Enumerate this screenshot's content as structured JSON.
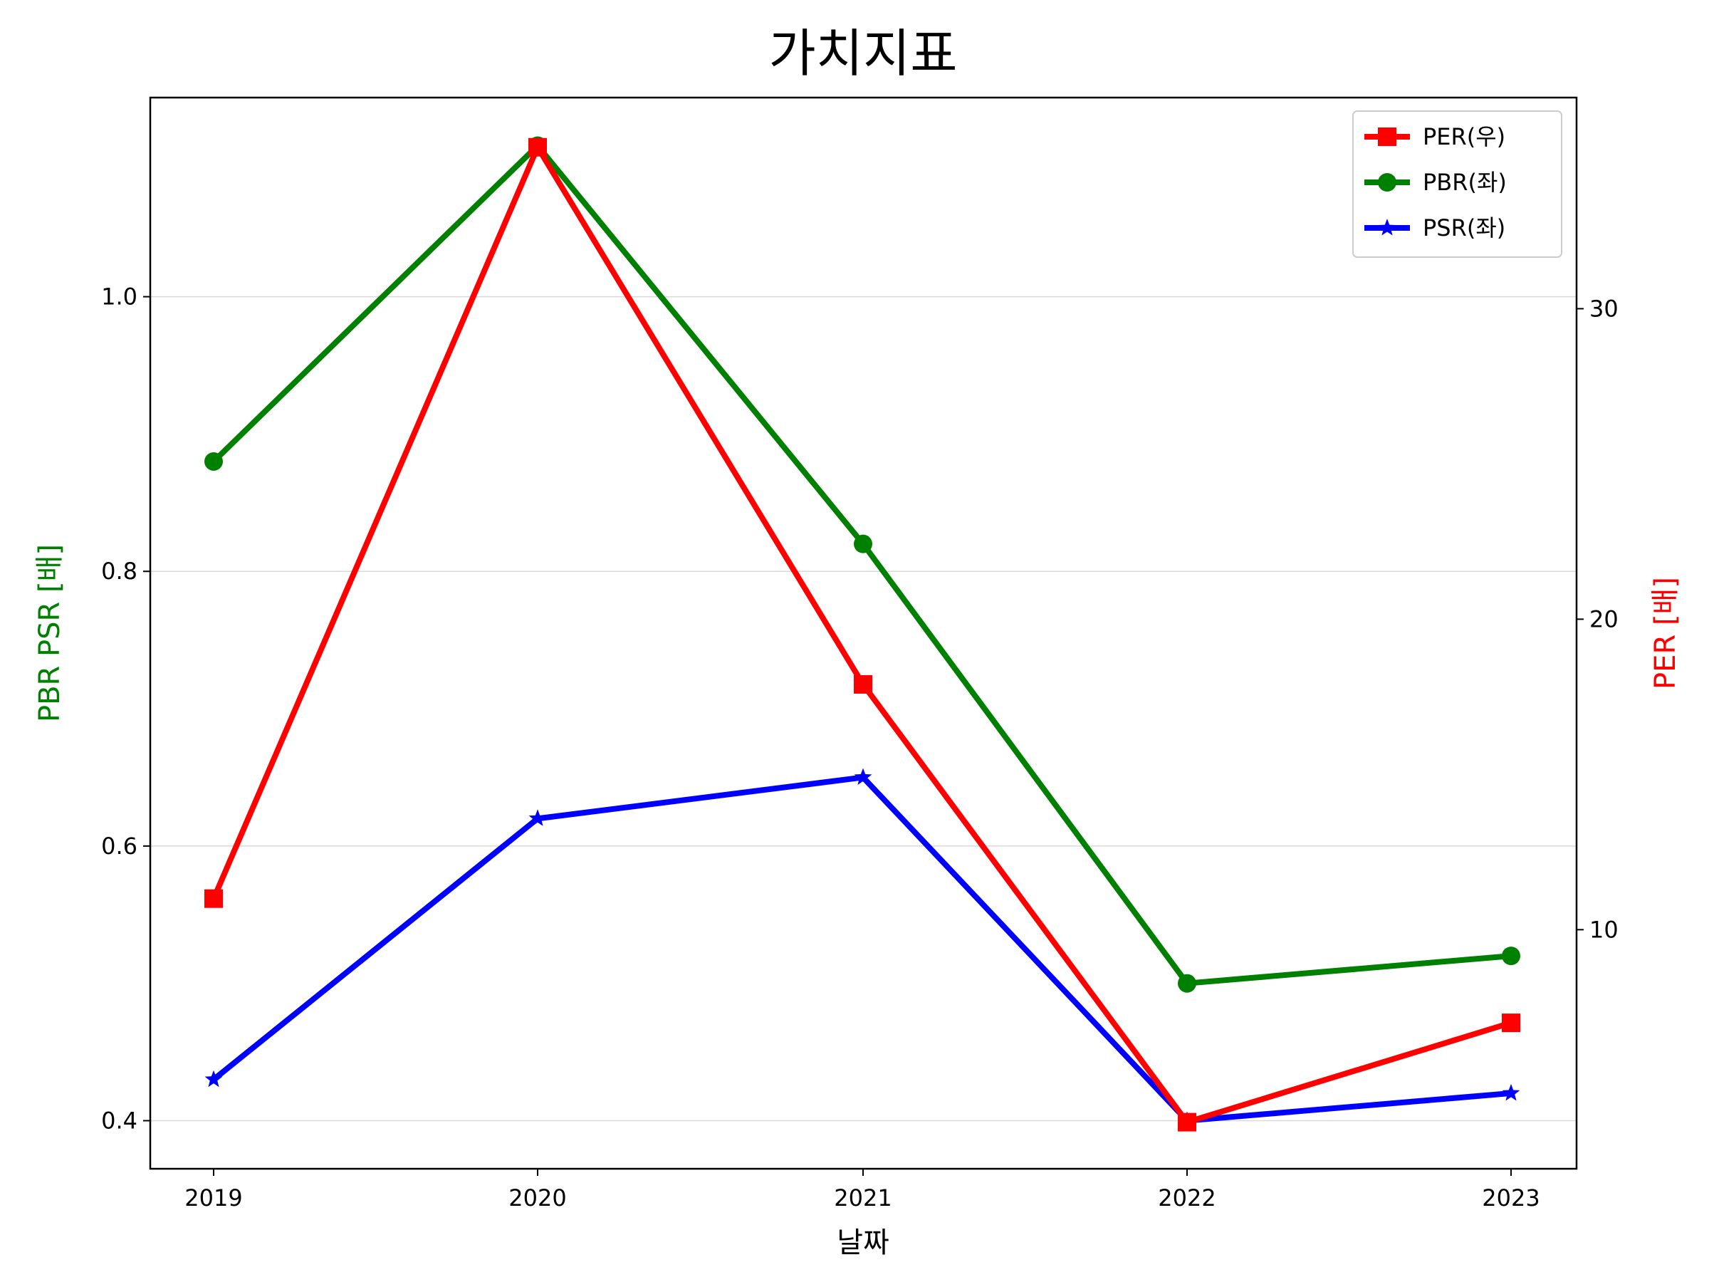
{
  "chart_data": {
    "type": "line",
    "title": "가치지표",
    "xlabel": "날짜",
    "ylabel_left": "PBR PSR [배]",
    "ylabel_right": "PER [배]",
    "categories": [
      "2019",
      "2020",
      "2021",
      "2022",
      "2023"
    ],
    "left_axis": {
      "ylim": [
        0.365,
        1.145
      ],
      "ticks": [
        0.4,
        0.6,
        0.8,
        1.0
      ],
      "tick_labels": [
        "0.4",
        "0.6",
        "0.8",
        "1.0"
      ],
      "color": "#008000"
    },
    "right_axis": {
      "ylim": [
        2.3,
        36.8
      ],
      "ticks": [
        10,
        20,
        30
      ],
      "tick_labels": [
        "10",
        "20",
        "30"
      ],
      "color": "#ff0000"
    },
    "grid": "horizontal",
    "legend_position": "top-right",
    "series": [
      {
        "name": "PER(우)",
        "axis": "right",
        "color": "#ff0000",
        "marker": "square",
        "values": [
          11.0,
          35.2,
          17.9,
          3.8,
          7.0
        ]
      },
      {
        "name": "PBR(좌)",
        "axis": "left",
        "color": "#008000",
        "marker": "circle",
        "values": [
          0.88,
          1.11,
          0.82,
          0.5,
          0.52
        ]
      },
      {
        "name": "PSR(좌)",
        "axis": "left",
        "color": "#0000ff",
        "marker": "star",
        "values": [
          0.43,
          0.62,
          0.65,
          0.4,
          0.42
        ]
      }
    ]
  }
}
